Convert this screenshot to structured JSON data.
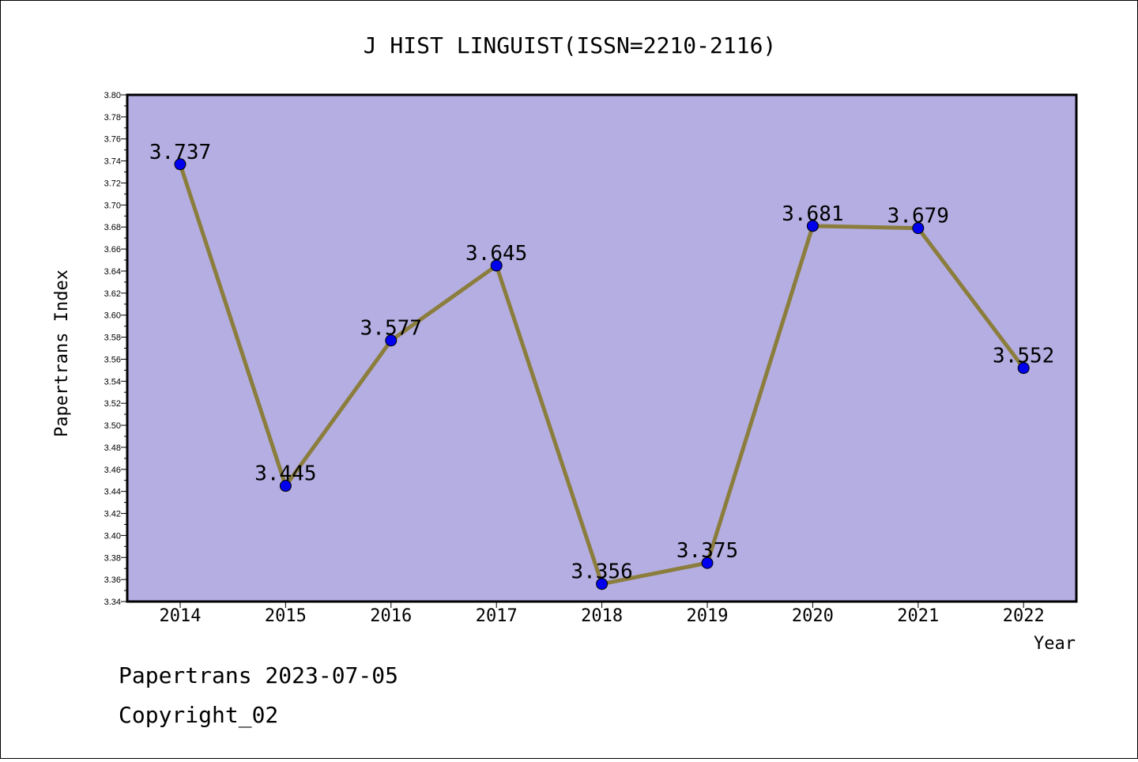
{
  "chart_data": {
    "type": "line",
    "title": "J HIST LINGUIST(ISSN=2210-2116)",
    "xlabel": "Year",
    "ylabel": "Papertrans Index",
    "categories": [
      "2014",
      "2015",
      "2016",
      "2017",
      "2018",
      "2019",
      "2020",
      "2021",
      "2022"
    ],
    "values": [
      3.737,
      3.445,
      3.577,
      3.645,
      3.356,
      3.375,
      3.681,
      3.679,
      3.552
    ],
    "data_labels": [
      "3.737",
      "3.445",
      "3.577",
      "3.645",
      "3.356",
      "3.375",
      "3.681",
      "3.679",
      "3.552"
    ],
    "ylim": [
      3.34,
      3.8
    ],
    "yticks": [
      "3.34",
      "3.36",
      "3.38",
      "3.40",
      "3.42",
      "3.44",
      "3.46",
      "3.48",
      "3.50",
      "3.52",
      "3.54",
      "3.56",
      "3.58",
      "3.60",
      "3.62",
      "3.64",
      "3.66",
      "3.68",
      "3.70",
      "3.72",
      "3.74",
      "3.76",
      "3.78",
      "3.80"
    ],
    "grid": false,
    "colors": {
      "plot_background": "#b4aee2",
      "line": "#8b7d3c",
      "marker": "#0000ee"
    }
  },
  "footer": {
    "line1": "Papertrans 2023-07-05",
    "line2": "Copyright_02"
  }
}
